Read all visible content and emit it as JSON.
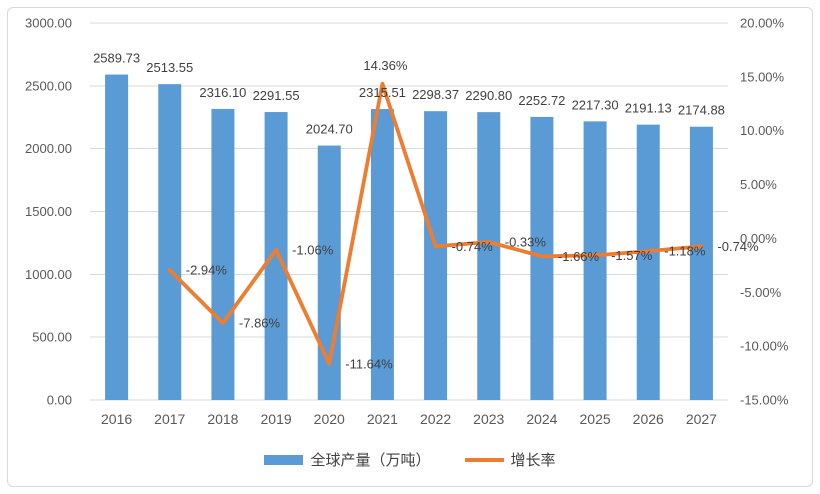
{
  "chart_data": {
    "type": "combo",
    "categories": [
      "2016",
      "2017",
      "2018",
      "2019",
      "2020",
      "2021",
      "2022",
      "2023",
      "2024",
      "2025",
      "2026",
      "2027"
    ],
    "series": [
      {
        "name": "全球产量（万吨）",
        "type": "bar",
        "axis": "left",
        "color": "#5B9BD5",
        "values": [
          2589.73,
          2513.55,
          2316.1,
          2291.55,
          2024.7,
          2315.51,
          2298.37,
          2290.8,
          2252.72,
          2217.3,
          2191.13,
          2174.88
        ],
        "labels": [
          "2589.73",
          "2513.55",
          "2316.10",
          "2291.55",
          "2024.70",
          "2315.51",
          "2298.37",
          "2290.80",
          "2252.72",
          "2217.30",
          "2191.13",
          "2174.88"
        ]
      },
      {
        "name": "增长率",
        "type": "line",
        "axis": "right",
        "color": "#ED7D31",
        "values": [
          null,
          -2.94,
          -7.86,
          -1.06,
          -11.64,
          14.36,
          -0.74,
          -0.33,
          -1.66,
          -1.57,
          -1.18,
          -0.74
        ],
        "labels": [
          null,
          "-2.94%",
          "-7.86%",
          "-1.06%",
          "-11.64%",
          "14.36%",
          "-0.74%",
          "-0.33%",
          "-1.66%",
          "-1.57%",
          "-1.18%",
          "-0.74%"
        ]
      }
    ],
    "left_axis": {
      "min": 0,
      "max": 3000,
      "ticks": [
        0,
        500,
        1000,
        1500,
        2000,
        2500,
        3000
      ],
      "tick_labels": [
        "0.00",
        "500.00",
        "1000.00",
        "1500.00",
        "2000.00",
        "2500.00",
        "3000.00"
      ]
    },
    "right_axis": {
      "min": -15,
      "max": 20,
      "ticks": [
        -15,
        -10,
        -5,
        0,
        5,
        10,
        15,
        20
      ],
      "tick_labels": [
        "-15.00%",
        "-10.00%",
        "-5.00%",
        "0.00%",
        "5.00%",
        "10.00%",
        "15.00%",
        "20.00%"
      ]
    },
    "grid": "horizontal",
    "legend_position": "bottom",
    "title": "",
    "colors": {
      "bar": "#5B9BD5",
      "line": "#ED7D31",
      "grid": "#D9D9D9",
      "data_label_text": "#404040",
      "axis_text": "#595959",
      "border": "#D9D9D9"
    }
  }
}
